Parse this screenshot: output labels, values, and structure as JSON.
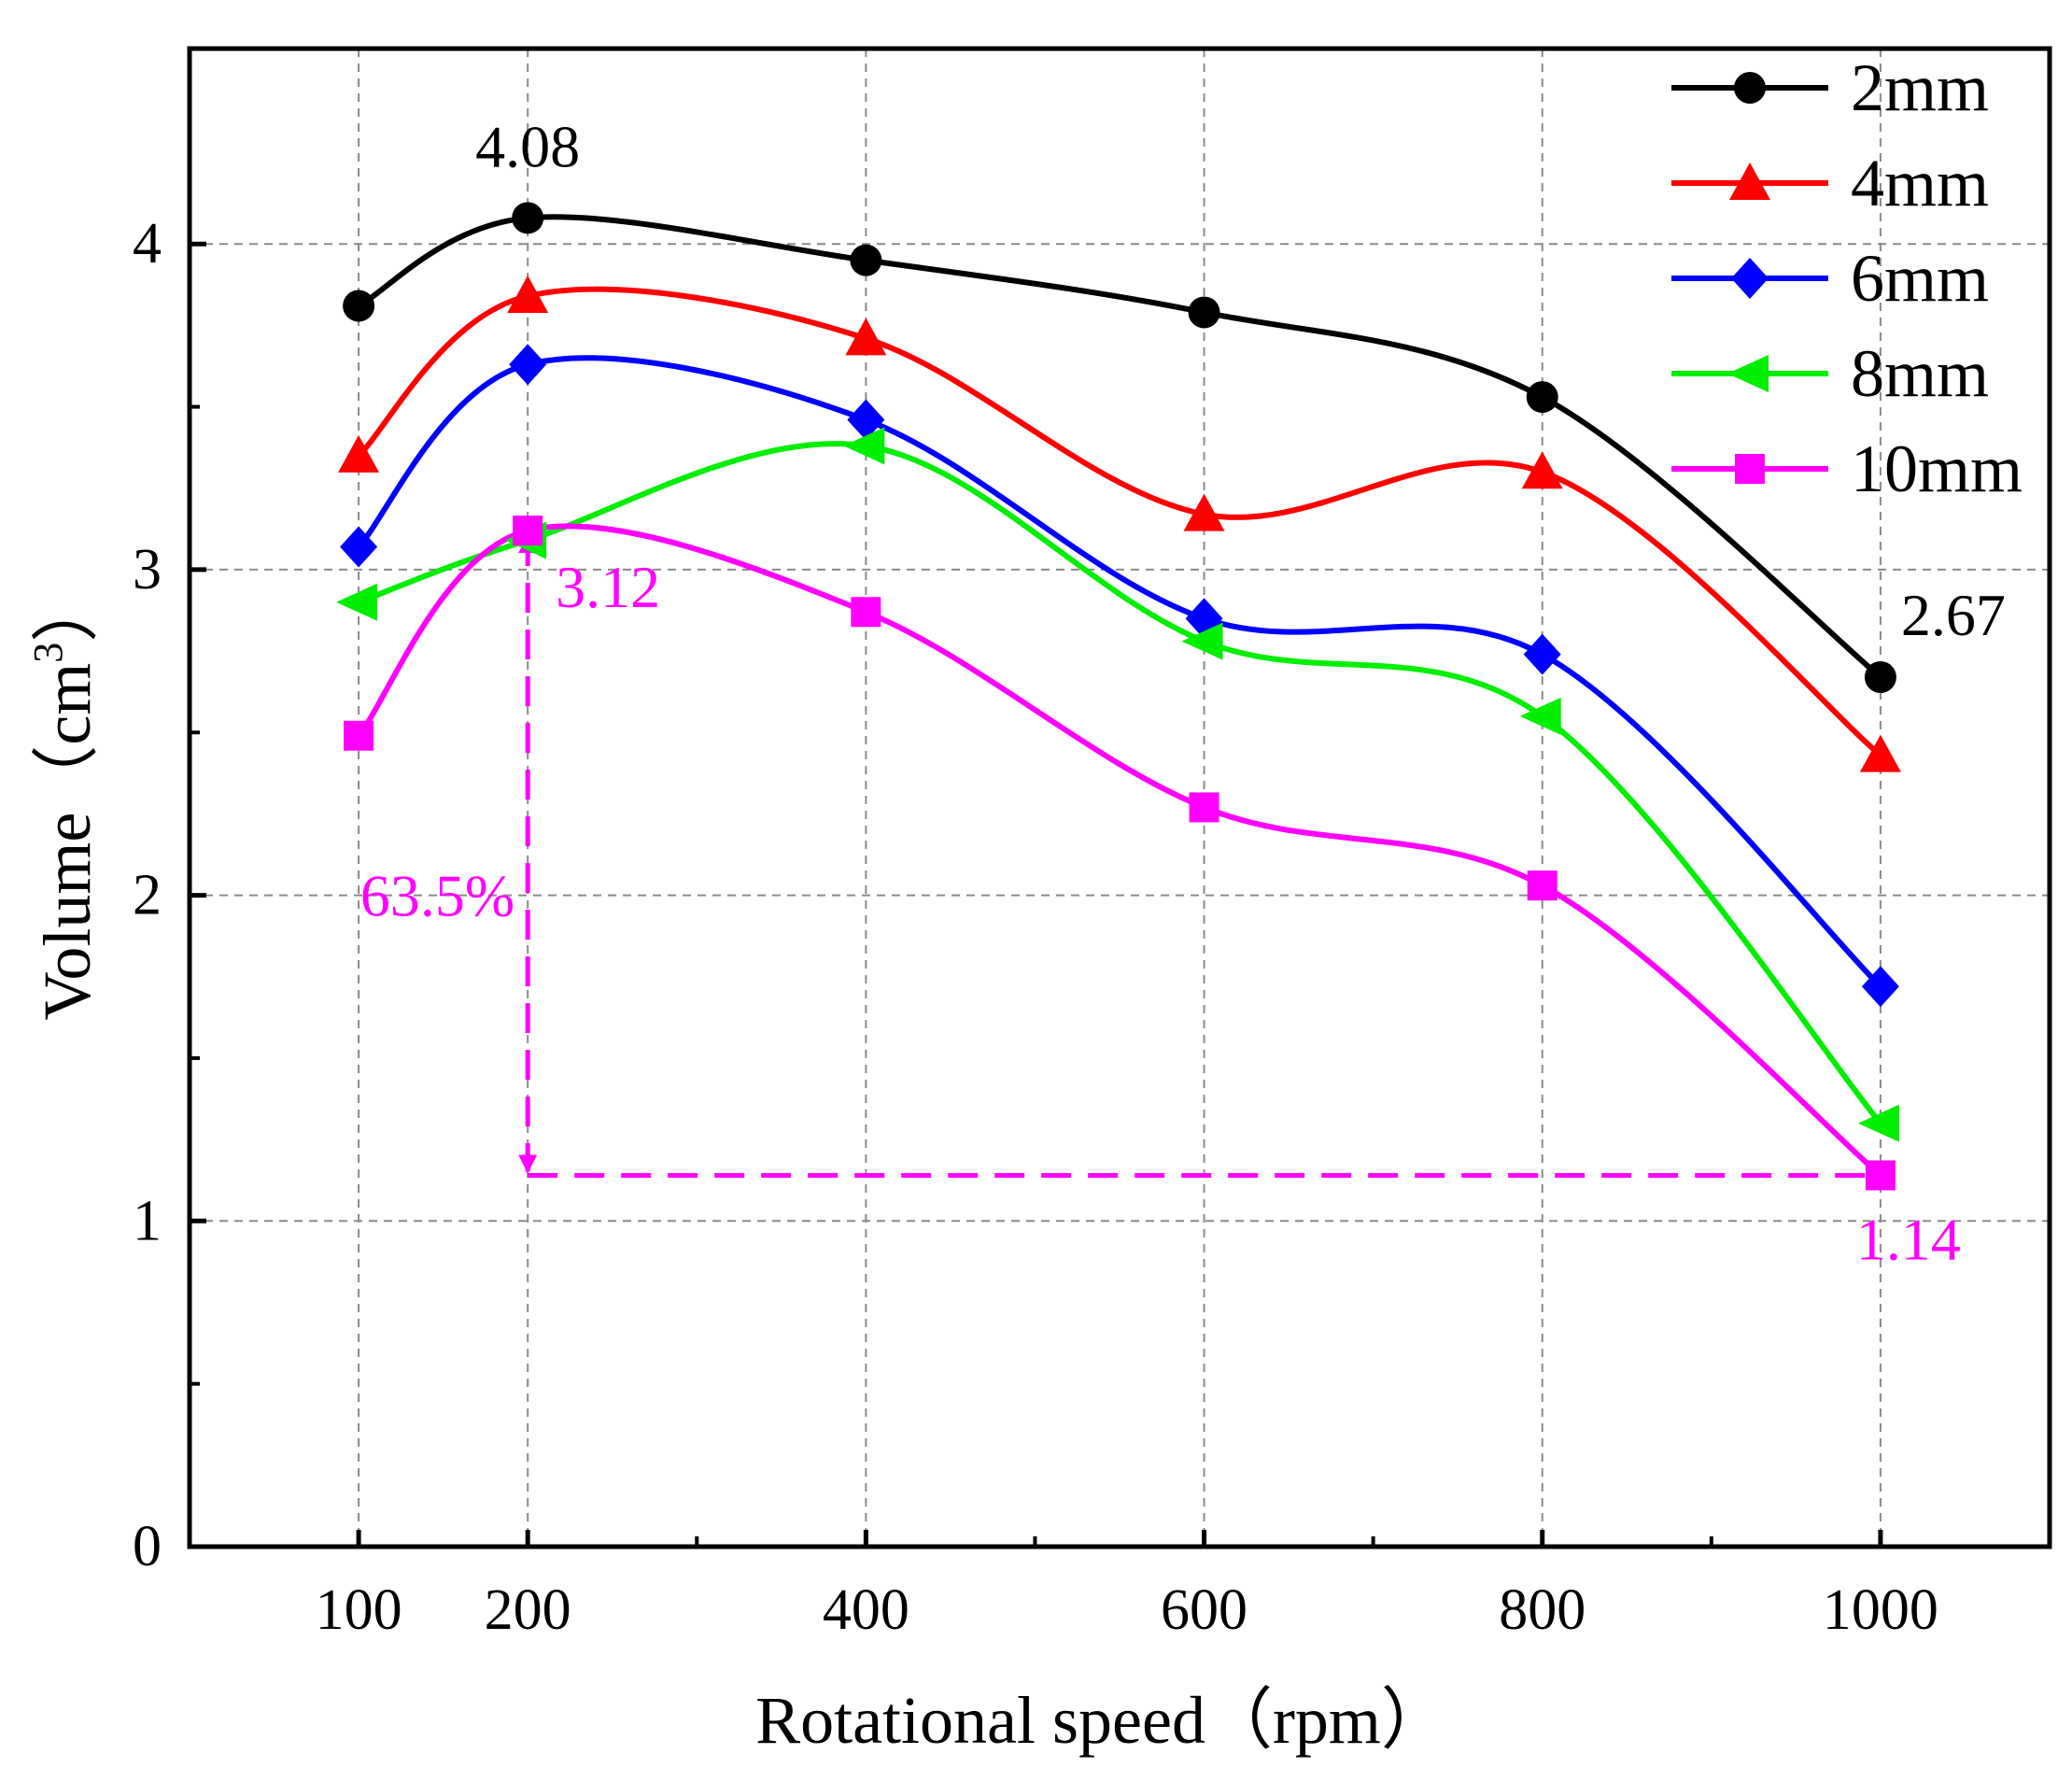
{
  "chart_data": {
    "type": "line",
    "title": "",
    "xlabel": "Rotational speed（rpm）",
    "ylabel_main": "Volume（cm",
    "ylabel_sup": "3",
    "ylabel_end": "）",
    "xlim": [
      0,
      1100
    ],
    "ylim": [
      0,
      4.6
    ],
    "x": [
      100,
      200,
      400,
      600,
      800,
      1000
    ],
    "x_tick_labels": [
      "100",
      "200",
      "400",
      "600",
      "800",
      "1000"
    ],
    "x_minor_ticks": [
      300,
      500,
      700,
      900
    ],
    "y_ticks": [
      0,
      1,
      2,
      3,
      4
    ],
    "y_tick_labels": [
      "0",
      "1",
      "2",
      "3",
      "4"
    ],
    "y_minor_ticks": [
      0.5,
      1.5,
      2.5,
      3.5
    ],
    "grid": true,
    "legend_position": "top-right",
    "series": [
      {
        "name": "2mm",
        "color": "#000000",
        "marker": "circle",
        "values": [
          3.81,
          4.08,
          3.95,
          3.79,
          3.53,
          2.67
        ]
      },
      {
        "name": "4mm",
        "color": "#ff0000",
        "marker": "triangle-up",
        "values": [
          3.35,
          3.84,
          3.71,
          3.17,
          3.3,
          2.43
        ]
      },
      {
        "name": "6mm",
        "color": "#0000ff",
        "marker": "diamond",
        "values": [
          3.07,
          3.63,
          3.46,
          2.85,
          2.74,
          1.72
        ]
      },
      {
        "name": "8mm",
        "color": "#00ee00",
        "marker": "triangle-left",
        "values": [
          2.9,
          3.09,
          3.38,
          2.78,
          2.55,
          1.3
        ]
      },
      {
        "name": "10mm",
        "color": "#ff00ff",
        "marker": "square",
        "values": [
          2.49,
          3.12,
          2.87,
          2.27,
          2.03,
          1.14
        ]
      }
    ],
    "annotations": [
      {
        "text": "4.08",
        "x": 200,
        "y": 4.08,
        "color": "#000000",
        "placement": "above"
      },
      {
        "text": "2.67",
        "x": 1000,
        "y": 2.67,
        "color": "#000000",
        "placement": "above-right"
      },
      {
        "text": "3.12",
        "x": 200,
        "y": 3.12,
        "color": "#ff00ff",
        "placement": "below-right"
      },
      {
        "text": "63.5%",
        "x": 200,
        "y": 2.0,
        "color": "#ff00ff",
        "placement": "left"
      },
      {
        "text": "1.14",
        "x": 1000,
        "y": 1.14,
        "color": "#ff00ff",
        "placement": "below"
      }
    ],
    "reduction_guide": {
      "color": "#ff00ff",
      "x_from": 200,
      "y_from": 3.12,
      "y_to": 1.14,
      "x_to": 1000
    }
  }
}
